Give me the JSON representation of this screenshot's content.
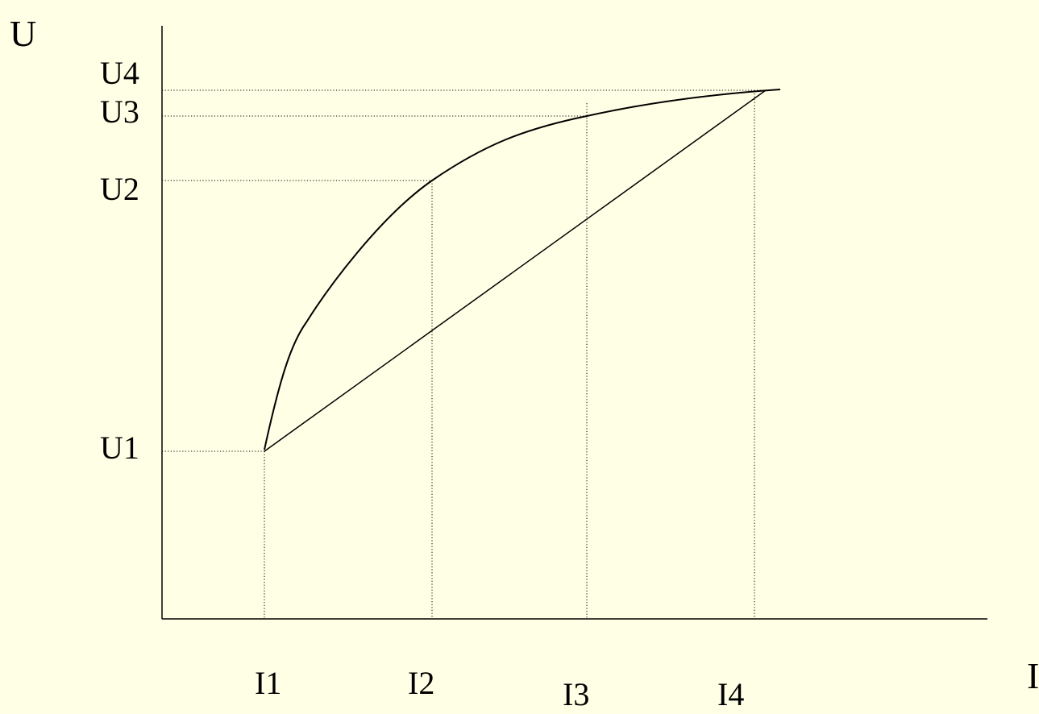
{
  "diagram": {
    "y_axis_title": "U",
    "x_axis_title": "I",
    "y_labels": [
      "U4",
      "U3",
      "U2",
      "U1"
    ],
    "x_labels": [
      "I1",
      "I2",
      "I3",
      "I4"
    ],
    "colors": {
      "background": "#ffffe5",
      "ink": "#000000"
    }
  }
}
